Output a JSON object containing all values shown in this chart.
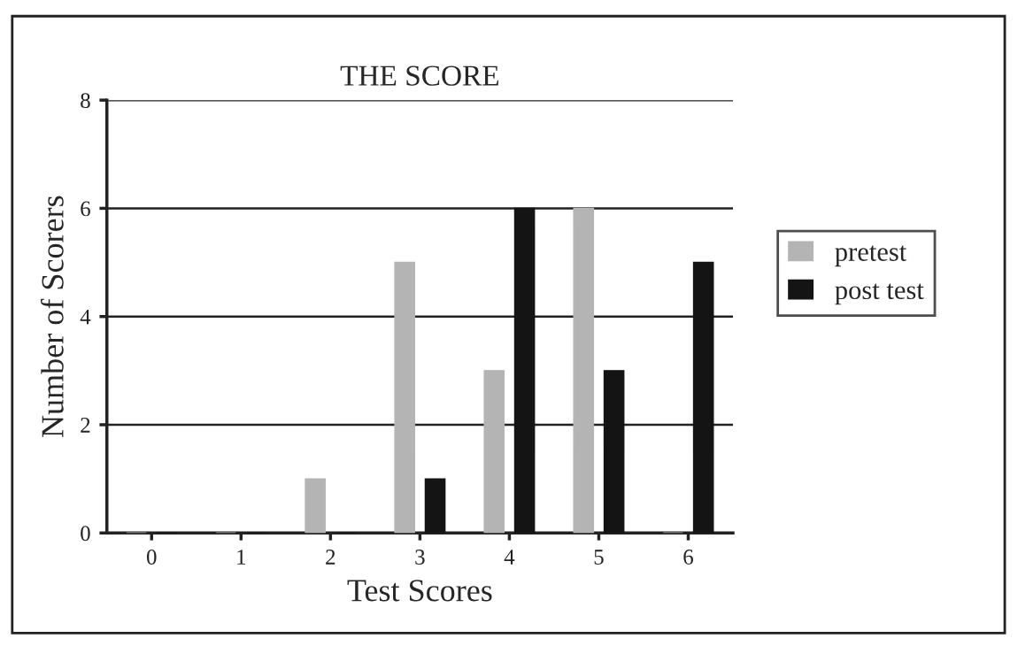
{
  "chart_data": {
    "type": "bar",
    "title": "THE SCORE",
    "xlabel": "Test Scores",
    "ylabel": "Number of Scorers",
    "categories": [
      "0",
      "1",
      "2",
      "3",
      "4",
      "5",
      "6"
    ],
    "series": [
      {
        "name": "pretest",
        "color": "#b4b4b4",
        "values": [
          0,
          0,
          1,
          5,
          3,
          6,
          0
        ]
      },
      {
        "name": "post test",
        "color": "#141414",
        "values": [
          0,
          0,
          0,
          1,
          6,
          3,
          5
        ]
      }
    ],
    "ylim": [
      0,
      8
    ],
    "yticks": [
      0,
      2,
      4,
      6,
      8
    ],
    "grid": "y",
    "legend": "right"
  }
}
